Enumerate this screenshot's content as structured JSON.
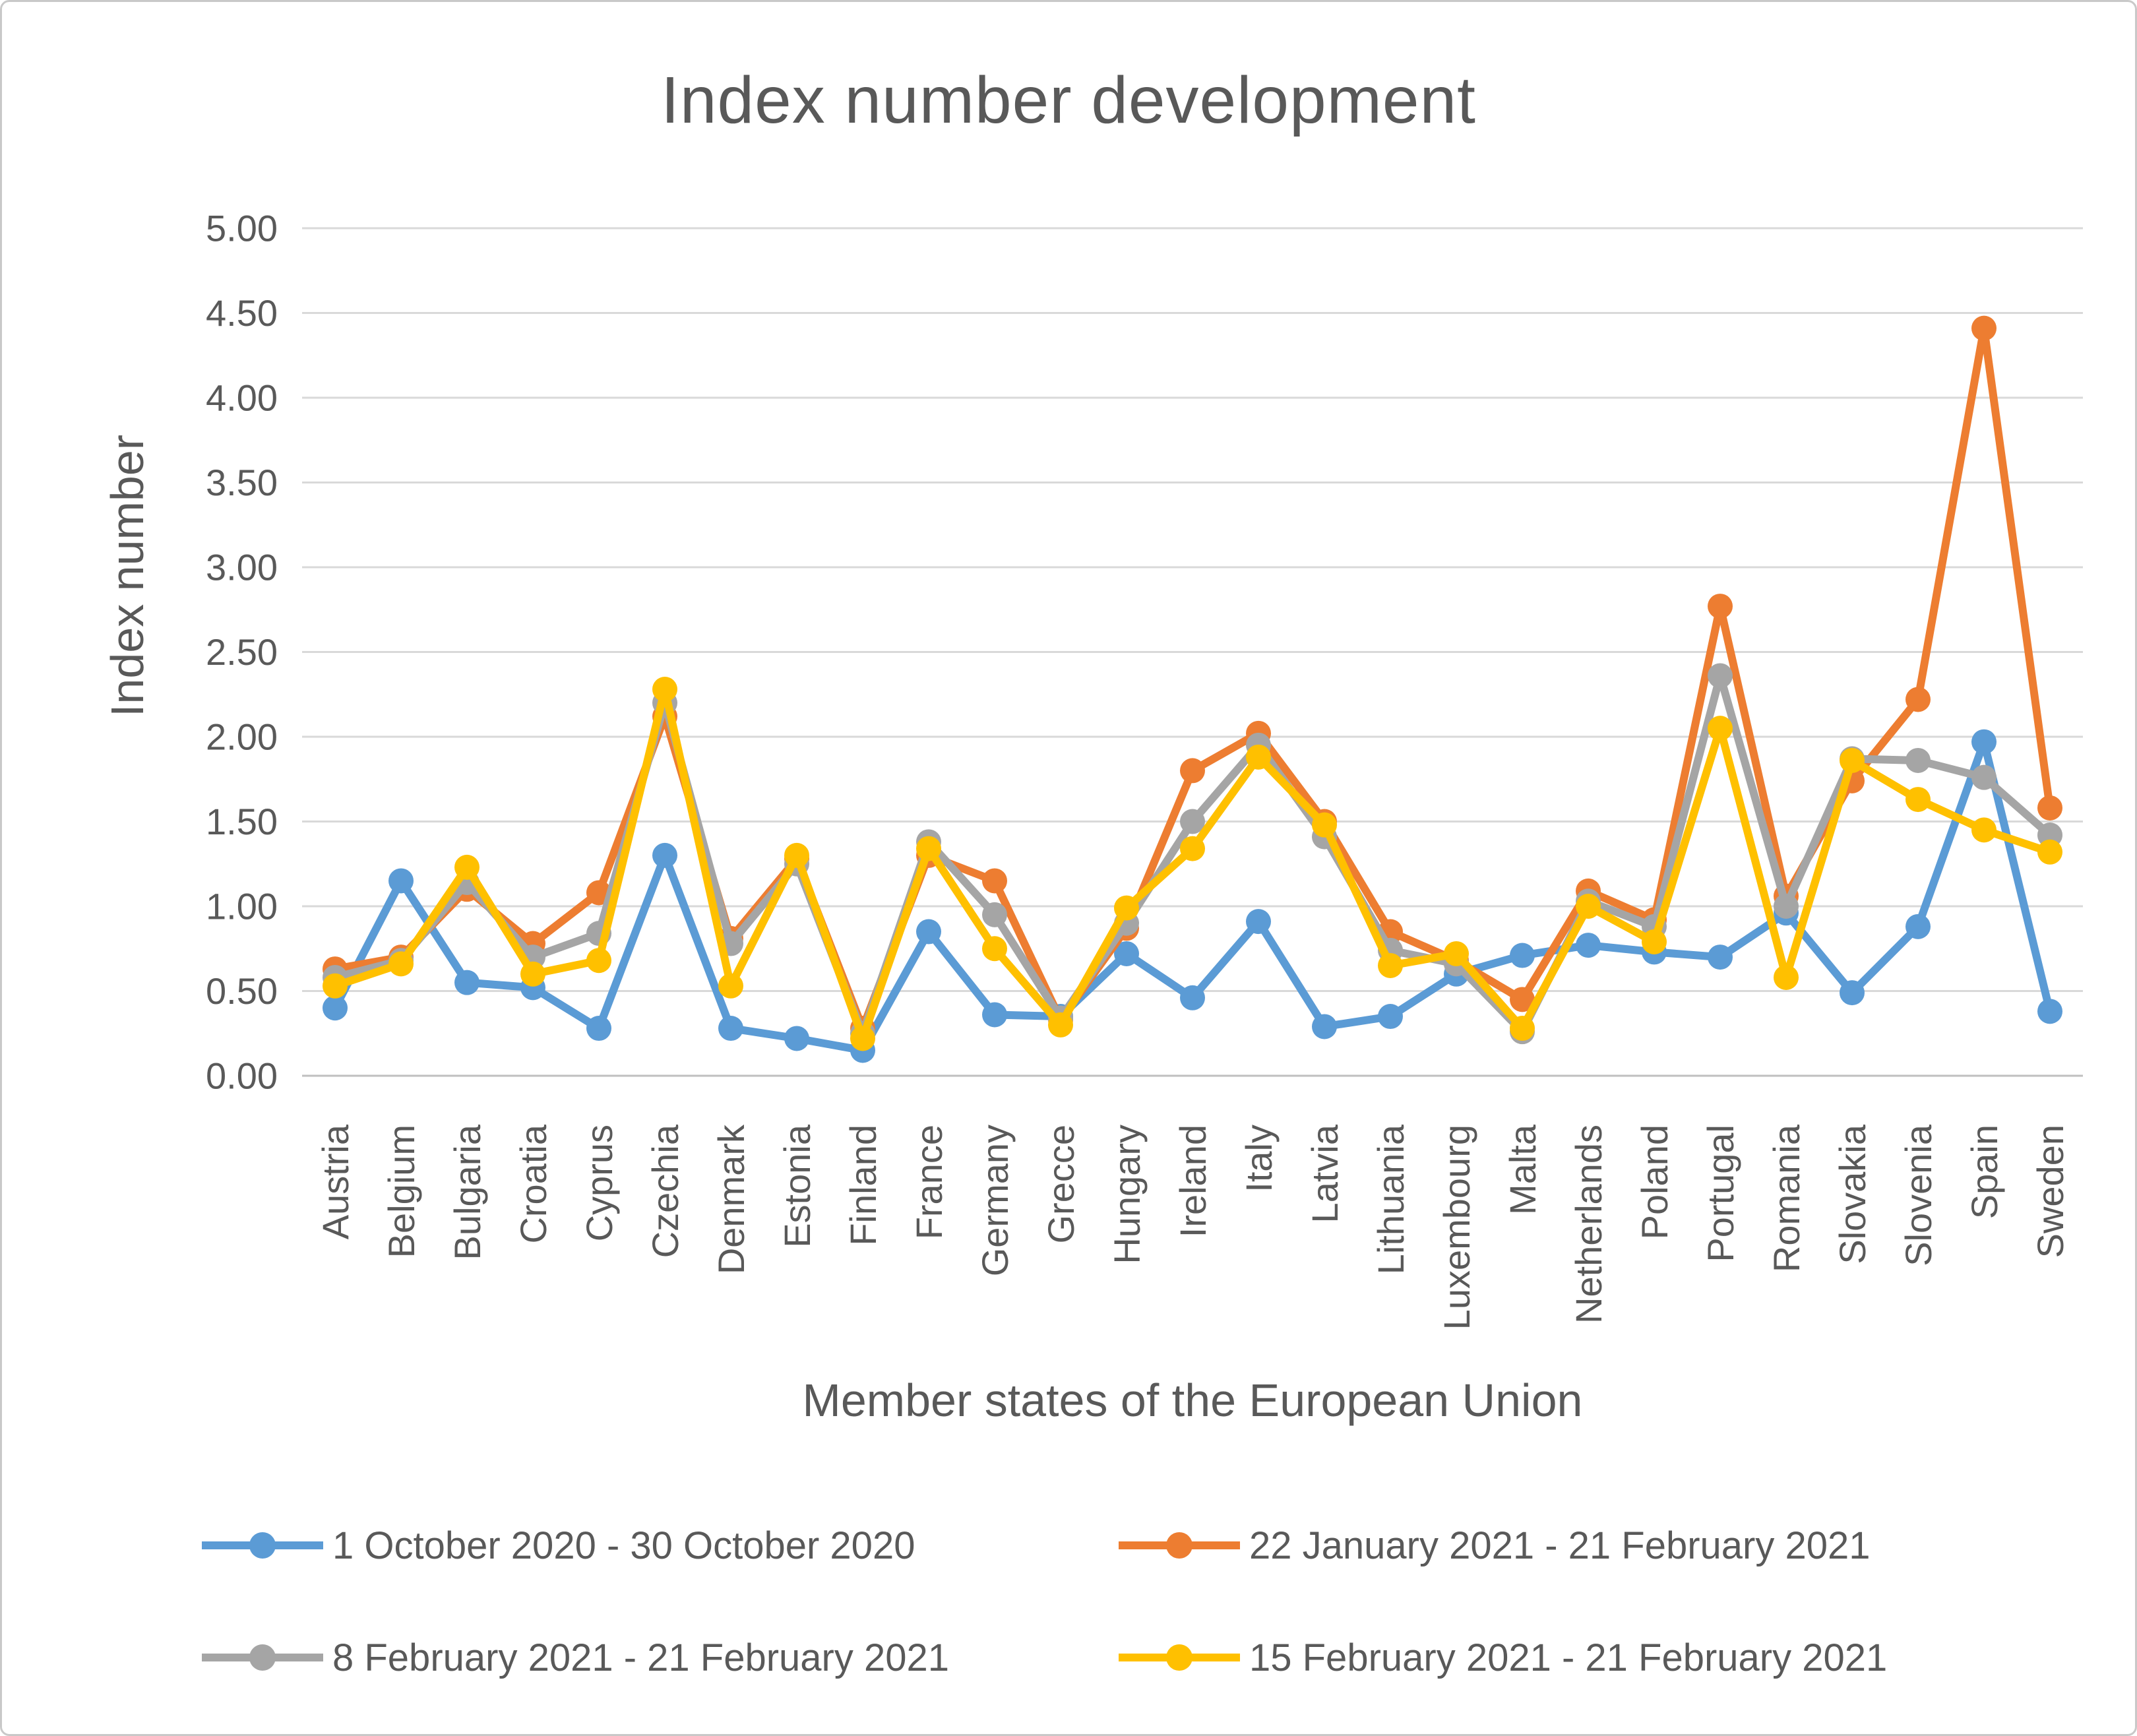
{
  "chart_data": {
    "type": "line",
    "title": "Index number development",
    "xlabel": "Member states of the European Union",
    "ylabel": "Index number",
    "ylim": [
      0,
      5
    ],
    "ytick_step": 0.5,
    "ytick_format_decimals": 2,
    "grid": true,
    "legend_position": "bottom",
    "categories": [
      "Austria",
      "Belgium",
      "Bulgaria",
      "Croatia",
      "Cyprus",
      "Czechia",
      "Denmark",
      "Estonia",
      "Finland",
      "France",
      "Germany",
      "Grecce",
      "Hungary",
      "Ireland",
      "Italy",
      "Latvia",
      "Lithuania",
      "Luxembourg",
      "Malta",
      "Netherlands",
      "Poland",
      "Portugal",
      "Romania",
      "Slovakia",
      "Slovenia",
      "Spain",
      "Sweden"
    ],
    "series": [
      {
        "name": "1 October 2020 - 30 October 2020",
        "color": "#5B9BD5",
        "values": [
          0.4,
          1.15,
          0.55,
          0.52,
          0.28,
          1.3,
          0.28,
          0.22,
          0.15,
          0.85,
          0.36,
          0.35,
          0.72,
          0.46,
          0.91,
          0.29,
          0.35,
          0.6,
          0.71,
          0.77,
          0.73,
          0.7,
          0.96,
          0.49,
          0.88,
          1.97,
          0.38
        ]
      },
      {
        "name": "22 January 2021 - 21 February 2021",
        "color": "#ED7D31",
        "values": [
          0.63,
          0.7,
          1.1,
          0.78,
          1.08,
          2.12,
          0.81,
          1.28,
          0.28,
          1.3,
          1.15,
          0.33,
          0.87,
          1.8,
          2.02,
          1.5,
          0.85,
          0.68,
          0.45,
          1.09,
          0.92,
          2.77,
          1.06,
          1.74,
          2.22,
          4.41,
          1.58
        ]
      },
      {
        "name": "8 February 2021 - 21 February 2021",
        "color": "#A5A5A5",
        "values": [
          0.58,
          0.68,
          1.14,
          0.7,
          0.84,
          2.2,
          0.78,
          1.25,
          0.25,
          1.38,
          0.95,
          0.34,
          0.9,
          1.5,
          1.95,
          1.41,
          0.74,
          0.66,
          0.26,
          1.03,
          0.88,
          2.36,
          1.0,
          1.87,
          1.86,
          1.76,
          1.42
        ]
      },
      {
        "name": "15 February 2021 - 21 February 2021",
        "color": "#FFC000",
        "values": [
          0.53,
          0.66,
          1.23,
          0.6,
          0.68,
          2.28,
          0.53,
          1.3,
          0.22,
          1.34,
          0.75,
          0.3,
          0.99,
          1.34,
          1.88,
          1.48,
          0.65,
          0.72,
          0.28,
          1.0,
          0.79,
          2.05,
          0.58,
          1.86,
          1.63,
          1.45,
          1.32
        ]
      }
    ]
  },
  "colors": {
    "text": "#595959",
    "gridline": "#D9D9D9",
    "axis_line": "#BFBFBF"
  }
}
